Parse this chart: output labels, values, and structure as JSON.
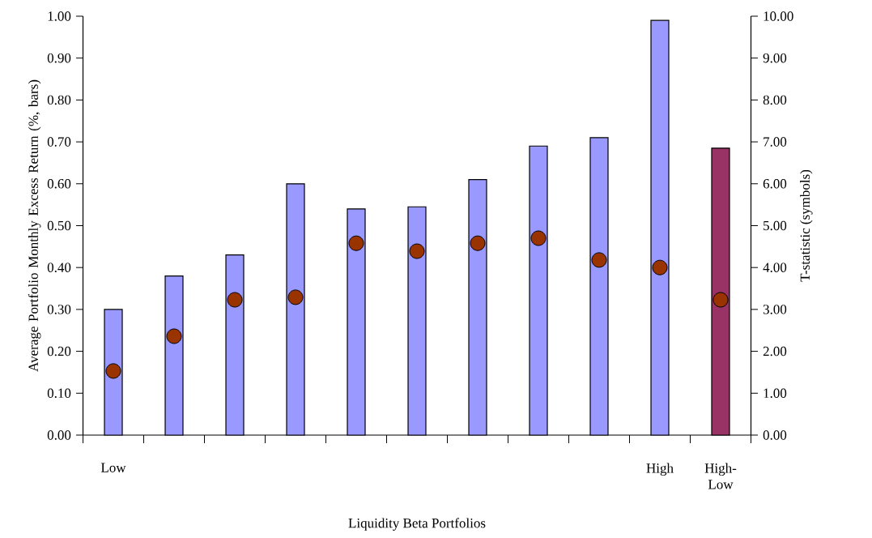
{
  "chart_data": {
    "type": "bar",
    "xlabel": "Liquidity Beta Portfolios",
    "ylabel": "Average Portfolio Monthly Excess Return (%, bars)",
    "y2label": "T-statistic (symbols)",
    "categories": [
      "Low",
      null,
      null,
      null,
      null,
      null,
      null,
      null,
      null,
      "High",
      "High-Low"
    ],
    "series": [
      {
        "type": "bar",
        "colors": [
          "#9999ff",
          "#9999ff",
          "#9999ff",
          "#9999ff",
          "#9999ff",
          "#9999ff",
          "#9999ff",
          "#9999ff",
          "#9999ff",
          "#9999ff",
          "#993366"
        ],
        "values": [
          0.3,
          0.38,
          0.43,
          0.6,
          0.54,
          0.545,
          0.61,
          0.69,
          0.71,
          0.99,
          0.685
        ]
      },
      {
        "type": "scatter",
        "axis": "y2",
        "color": "#993300",
        "marker": "circle",
        "values": [
          1.53,
          2.36,
          3.23,
          3.29,
          4.58,
          4.39,
          4.58,
          4.7,
          4.18,
          4.0,
          3.23
        ]
      }
    ],
    "ylim": [
      0,
      1
    ],
    "yticks": [
      {
        "value": 0,
        "label": "0.00"
      },
      {
        "value": 0.1,
        "label": "0.10"
      },
      {
        "value": 0.2,
        "label": "0.20"
      },
      {
        "value": 0.3,
        "label": "0.30"
      },
      {
        "value": 0.4,
        "label": "0.40"
      },
      {
        "value": 0.5,
        "label": "0.50"
      },
      {
        "value": 0.6,
        "label": "0.60"
      },
      {
        "value": 0.7,
        "label": "0.70"
      },
      {
        "value": 0.8,
        "label": "0.80"
      },
      {
        "value": 0.9,
        "label": "0.90"
      },
      {
        "value": 1,
        "label": "1.00"
      }
    ],
    "y2lim": [
      0,
      10
    ],
    "y2ticks": [
      {
        "value": 0,
        "label": "0.00"
      },
      {
        "value": 1,
        "label": "1.00"
      },
      {
        "value": 2,
        "label": "2.00"
      },
      {
        "value": 3,
        "label": "3.00"
      },
      {
        "value": 4,
        "label": "4.00"
      },
      {
        "value": 5,
        "label": "5.00"
      },
      {
        "value": 6,
        "label": "6.00"
      },
      {
        "value": 7,
        "label": "7.00"
      },
      {
        "value": 8,
        "label": "8.00"
      },
      {
        "value": 9,
        "label": "9.00"
      },
      {
        "value": 10,
        "label": "10.00"
      }
    ],
    "grid": false,
    "legend": false
  }
}
